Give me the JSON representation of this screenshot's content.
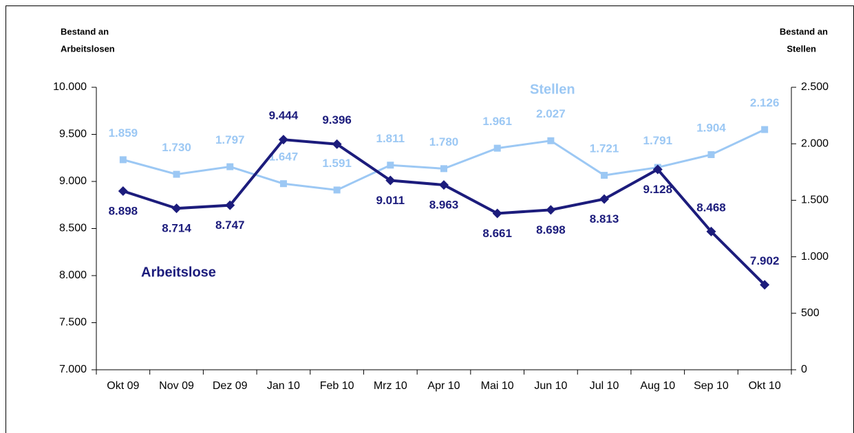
{
  "chart_data": {
    "type": "line",
    "y_label": [
      "Bestand an",
      "Arbeitslosen"
    ],
    "y2_label": [
      "Bestand an",
      "Stellen"
    ],
    "categories": [
      "Okt 09",
      "Nov 09",
      "Dez 09",
      "Jan 10",
      "Feb 10",
      "Mrz 10",
      "Apr 10",
      "Mai 10",
      "Jun 10",
      "Jul 10",
      "Aug 10",
      "Sep 10",
      "Okt 10"
    ],
    "series": [
      {
        "name": "Arbeitslose",
        "color": "#1c1c7c",
        "values": [
          8898,
          8714,
          8747,
          9444,
          9396,
          9011,
          8963,
          8661,
          8698,
          8813,
          9128,
          8468,
          7902
        ],
        "value_labels": [
          "8.898",
          "8.714",
          "8.747",
          "9.444",
          "9.396",
          "9.011",
          "8.963",
          "8.661",
          "8.698",
          "8.813",
          "9.128",
          "8.468",
          "7.902"
        ]
      },
      {
        "name": "Stellen",
        "color": "#9cc8f4",
        "axis": "y2",
        "values": [
          1859,
          1730,
          1797,
          1647,
          1591,
          1811,
          1780,
          1961,
          2027,
          1721,
          1791,
          1904,
          2126
        ],
        "value_labels": [
          "1.859",
          "1.730",
          "1.797",
          "1.647",
          "1.591",
          "1.811",
          "1.780",
          "1.961",
          "2.027",
          "1.721",
          "1.791",
          "1.904",
          "2.126"
        ]
      }
    ],
    "ylim": [
      7000,
      10000
    ],
    "yticks": [
      {
        "value": 7000,
        "label": "7.000"
      },
      {
        "value": 7500,
        "label": "7.500"
      },
      {
        "value": 8000,
        "label": "8.000"
      },
      {
        "value": 8500,
        "label": "8.500"
      },
      {
        "value": 9000,
        "label": "9.000"
      },
      {
        "value": 9500,
        "label": "9.500"
      },
      {
        "value": 10000,
        "label": "10.000"
      }
    ],
    "y2lim": [
      0,
      2500
    ],
    "y2ticks": [
      0,
      500,
      {
        "value": 1000,
        "label": "1.000"
      },
      {
        "value": 1500,
        "label": "1.500"
      },
      {
        "value": 2000,
        "label": "2.000"
      },
      {
        "value": 2500,
        "label": "2.500"
      }
    ]
  }
}
